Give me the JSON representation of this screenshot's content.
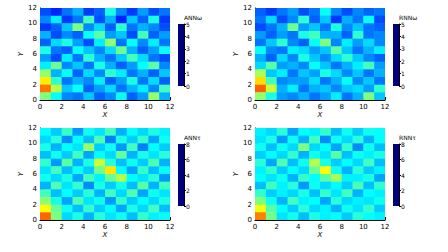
{
  "chart_data": [
    {
      "type": "heatmap",
      "xlabel": "X",
      "ylabel": "Y",
      "xlim": [
        0,
        12
      ],
      "ylim": [
        0,
        12
      ],
      "xticks": [
        0,
        2,
        4,
        6,
        8,
        10,
        12
      ],
      "yticks": [
        0,
        2,
        4,
        6,
        8,
        10,
        12
      ],
      "colorbar": {
        "title": "ANNω",
        "range": [
          0,
          5
        ],
        "ticks": [
          0,
          1,
          2,
          3,
          4,
          5
        ]
      },
      "cells": [
        [
          1.0,
          0.8,
          1.2,
          1.5,
          0.9,
          1.1,
          2.0,
          1.3,
          0.9,
          1.4,
          1.0,
          1.2
        ],
        [
          1.3,
          1.8,
          0.9,
          1.2,
          2.2,
          1.0,
          1.5,
          0.8,
          1.6,
          1.1,
          2.0,
          0.9
        ],
        [
          0.9,
          1.1,
          1.6,
          2.5,
          1.3,
          1.7,
          1.1,
          2.1,
          1.2,
          1.5,
          1.3,
          1.0
        ],
        [
          1.5,
          1.0,
          1.3,
          1.1,
          1.9,
          2.3,
          1.4,
          1.6,
          1.0,
          2.2,
          1.1,
          1.4
        ],
        [
          1.1,
          1.7,
          2.0,
          1.4,
          1.0,
          1.8,
          2.6,
          1.2,
          1.9,
          1.3,
          1.8,
          1.2
        ],
        [
          2.0,
          1.2,
          1.1,
          1.9,
          1.6,
          1.3,
          1.7,
          2.4,
          1.5,
          1.1,
          1.4,
          1.9
        ],
        [
          1.4,
          1.0,
          1.8,
          1.2,
          2.1,
          1.5,
          1.2,
          1.6,
          2.2,
          1.7,
          1.2,
          1.0
        ],
        [
          1.8,
          2.4,
          1.3,
          1.6,
          1.2,
          2.0,
          1.5,
          1.1,
          1.4,
          1.9,
          2.3,
          1.3
        ],
        [
          2.6,
          1.5,
          1.9,
          1.1,
          1.7,
          1.3,
          2.1,
          1.8,
          1.2,
          1.5,
          1.1,
          1.6
        ],
        [
          3.2,
          2.1,
          1.2,
          1.5,
          1.3,
          1.8,
          1.1,
          1.4,
          2.0,
          1.2,
          1.7,
          1.1
        ],
        [
          3.8,
          2.8,
          1.6,
          1.9,
          1.1,
          1.4,
          1.7,
          1.2,
          1.5,
          1.8,
          1.3,
          2.2
        ],
        [
          2.5,
          1.9,
          1.3,
          1.2,
          1.6,
          1.1,
          1.3,
          1.9,
          1.1,
          1.4,
          2.6,
          1.5
        ]
      ]
    },
    {
      "type": "heatmap",
      "xlabel": "X",
      "ylabel": "Y",
      "xlim": [
        0,
        12
      ],
      "ylim": [
        0,
        12
      ],
      "xticks": [
        0,
        2,
        4,
        6,
        8,
        10,
        12
      ],
      "yticks": [
        0,
        2,
        4,
        6,
        8,
        10,
        12
      ],
      "colorbar": {
        "title": "RNNω",
        "range": [
          0,
          5
        ],
        "ticks": [
          0,
          1,
          2,
          3,
          4,
          5
        ]
      },
      "cells": [
        [
          1.1,
          0.9,
          1.2,
          1.4,
          1.0,
          1.2,
          1.9,
          1.3,
          1.0,
          1.3,
          1.1,
          1.2
        ],
        [
          1.2,
          1.7,
          1.0,
          1.3,
          2.1,
          1.1,
          1.6,
          0.9,
          1.5,
          1.2,
          1.9,
          1.0
        ],
        [
          1.0,
          1.2,
          1.5,
          2.4,
          1.4,
          1.6,
          1.2,
          2.0,
          1.3,
          1.6,
          1.2,
          1.1
        ],
        [
          1.4,
          1.1,
          1.4,
          1.2,
          2.0,
          2.2,
          1.5,
          1.5,
          1.1,
          2.1,
          1.2,
          1.3
        ],
        [
          1.2,
          1.6,
          2.1,
          1.3,
          1.1,
          1.9,
          2.5,
          1.3,
          1.8,
          1.4,
          1.7,
          1.3
        ],
        [
          1.9,
          1.3,
          1.2,
          1.8,
          1.7,
          1.4,
          1.6,
          2.3,
          1.6,
          1.2,
          1.5,
          1.8
        ],
        [
          1.5,
          1.1,
          1.7,
          1.3,
          2.0,
          1.6,
          1.3,
          1.7,
          2.1,
          1.6,
          1.3,
          1.1
        ],
        [
          1.7,
          2.3,
          1.4,
          1.5,
          1.3,
          1.9,
          1.6,
          1.2,
          1.5,
          1.8,
          2.2,
          1.4
        ],
        [
          2.7,
          1.6,
          1.8,
          1.2,
          1.6,
          1.4,
          2.0,
          1.7,
          1.3,
          1.6,
          1.2,
          1.5
        ],
        [
          3.3,
          2.2,
          1.3,
          1.4,
          1.4,
          1.7,
          1.2,
          1.5,
          1.9,
          1.3,
          1.6,
          1.2
        ],
        [
          3.9,
          2.9,
          1.5,
          1.8,
          1.2,
          1.5,
          1.6,
          1.3,
          1.6,
          1.7,
          1.4,
          2.1
        ],
        [
          2.6,
          2.0,
          1.4,
          1.3,
          1.5,
          1.2,
          1.4,
          1.8,
          1.2,
          1.5,
          2.5,
          1.6
        ]
      ]
    },
    {
      "type": "heatmap",
      "xlabel": "X",
      "ylabel": "Y",
      "xlim": [
        0,
        12
      ],
      "ylim": [
        0,
        12
      ],
      "xticks": [
        0,
        2,
        4,
        6,
        8,
        10,
        12
      ],
      "yticks": [
        0,
        2,
        4,
        6,
        8,
        10,
        12
      ],
      "colorbar": {
        "title": "ANNτ",
        "range": [
          0,
          8
        ],
        "ticks": [
          0,
          2,
          4,
          6,
          8
        ]
      },
      "cells": [
        [
          3.0,
          2.6,
          3.4,
          2.2,
          3.1,
          2.8,
          3.5,
          2.4,
          3.0,
          2.7,
          3.2,
          2.9
        ],
        [
          2.7,
          3.3,
          2.1,
          3.0,
          2.5,
          3.6,
          2.0,
          3.2,
          2.6,
          3.4,
          2.3,
          3.1
        ],
        [
          3.2,
          2.4,
          3.0,
          2.8,
          4.2,
          2.6,
          3.1,
          2.2,
          3.5,
          2.0,
          3.0,
          2.6
        ],
        [
          2.5,
          3.1,
          2.6,
          3.5,
          2.3,
          3.0,
          2.7,
          3.8,
          2.4,
          3.2,
          2.8,
          3.3
        ],
        [
          3.4,
          2.2,
          3.7,
          2.4,
          3.2,
          4.6,
          3.3,
          2.5,
          3.1,
          2.6,
          3.6,
          2.4
        ],
        [
          2.8,
          3.5,
          2.5,
          3.1,
          2.6,
          3.9,
          5.2,
          3.0,
          2.3,
          3.4,
          2.5,
          3.0
        ],
        [
          3.1,
          2.7,
          3.2,
          2.3,
          3.5,
          2.9,
          3.8,
          4.4,
          3.0,
          2.8,
          3.3,
          2.2
        ],
        [
          2.4,
          3.6,
          2.8,
          3.4,
          2.1,
          3.2,
          2.6,
          3.1,
          2.5,
          3.7,
          2.4,
          3.5
        ],
        [
          3.5,
          2.5,
          3.0,
          2.6,
          3.3,
          2.4,
          3.5,
          2.7,
          3.6,
          2.3,
          3.1,
          2.8
        ],
        [
          4.1,
          3.2,
          2.3,
          3.6,
          2.8,
          3.1,
          2.2,
          3.4,
          2.6,
          3.0,
          2.7,
          3.2
        ],
        [
          5.0,
          3.8,
          3.1,
          2.5,
          3.4,
          2.6,
          3.0,
          2.3,
          3.2,
          2.7,
          3.5,
          2.5
        ],
        [
          6.2,
          4.0,
          2.7,
          3.2,
          2.4,
          3.3,
          2.8,
          3.1,
          2.5,
          3.4,
          2.9,
          3.0
        ]
      ]
    },
    {
      "type": "heatmap",
      "xlabel": "X",
      "ylabel": "Y",
      "xlim": [
        0,
        12
      ],
      "ylim": [
        0,
        12
      ],
      "xticks": [
        0,
        2,
        4,
        6,
        8,
        10,
        12
      ],
      "yticks": [
        0,
        2,
        4,
        6,
        8,
        10,
        12
      ],
      "colorbar": {
        "title": "RNNτ",
        "range": [
          0,
          8
        ],
        "ticks": [
          0,
          2,
          4,
          6,
          8
        ]
      },
      "cells": [
        [
          2.9,
          2.7,
          3.3,
          2.3,
          3.0,
          2.9,
          3.4,
          2.5,
          3.1,
          2.6,
          3.1,
          3.0
        ],
        [
          2.8,
          3.2,
          2.2,
          3.1,
          2.4,
          3.5,
          2.1,
          3.1,
          2.7,
          3.3,
          2.4,
          3.0
        ],
        [
          3.1,
          2.5,
          3.1,
          2.7,
          4.0,
          2.7,
          3.0,
          2.3,
          3.4,
          2.1,
          3.1,
          2.5
        ],
        [
          2.6,
          3.0,
          2.7,
          3.4,
          2.4,
          3.1,
          2.8,
          3.7,
          2.5,
          3.1,
          2.9,
          3.2
        ],
        [
          3.3,
          2.3,
          3.6,
          2.5,
          3.1,
          4.4,
          3.2,
          2.6,
          3.0,
          2.7,
          3.5,
          2.5
        ],
        [
          2.9,
          3.4,
          2.6,
          3.0,
          2.7,
          3.8,
          5.0,
          3.1,
          2.4,
          3.3,
          2.6,
          2.9
        ],
        [
          3.0,
          2.8,
          3.1,
          2.4,
          3.4,
          3.0,
          3.7,
          4.3,
          2.9,
          2.9,
          3.2,
          2.3
        ],
        [
          2.5,
          3.5,
          2.9,
          3.3,
          2.2,
          3.1,
          2.7,
          3.0,
          2.6,
          3.6,
          2.5,
          3.4
        ],
        [
          3.4,
          2.6,
          2.9,
          2.7,
          3.2,
          2.5,
          3.4,
          2.8,
          3.5,
          2.4,
          3.0,
          2.9
        ],
        [
          4.0,
          3.1,
          2.4,
          3.5,
          2.9,
          3.0,
          2.3,
          3.3,
          2.7,
          2.9,
          2.8,
          3.1
        ],
        [
          4.9,
          3.7,
          3.0,
          2.6,
          3.3,
          2.7,
          2.9,
          2.4,
          3.1,
          2.8,
          3.4,
          2.6
        ],
        [
          6.0,
          3.9,
          2.8,
          3.1,
          2.5,
          3.2,
          2.9,
          3.0,
          2.6,
          3.3,
          3.0,
          2.9
        ]
      ]
    }
  ]
}
